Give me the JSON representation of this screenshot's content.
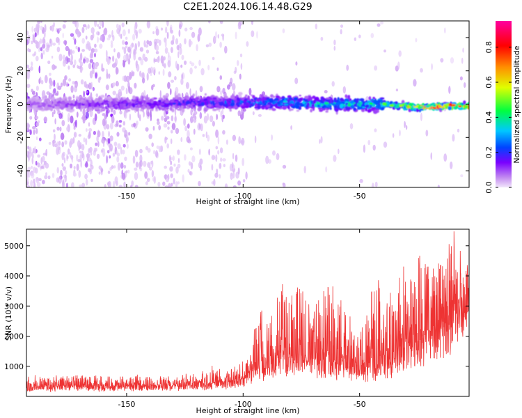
{
  "title": "C2E1.2024.106.14.48.G29",
  "chart_data": [
    {
      "type": "heatmap",
      "xlabel": "Height of straight line (km)",
      "ylabel": "Frequency (Hz)",
      "xlim": [
        -193,
        -3
      ],
      "ylim": [
        -50,
        50
      ],
      "x_ticks": [
        -150,
        -100,
        -50
      ],
      "y_ticks": [
        -40,
        -20,
        0,
        20,
        40
      ],
      "colorbar": {
        "label": "Normalized spectral amplitude",
        "range": [
          0,
          0.95
        ],
        "ticks": [
          0.0,
          0.2,
          0.4,
          0.6,
          0.8
        ],
        "colormap": [
          "#f2e6fb",
          "#c28af0",
          "#7a00ff",
          "#0044ff",
          "#00c8ff",
          "#00ff40",
          "#e0ff00",
          "#ff9000",
          "#ff0000",
          "#ff00a0"
        ]
      },
      "ridge": [
        {
          "x": -193,
          "freq": 0,
          "amp": 0.15
        },
        {
          "x": -150,
          "freq": 0,
          "amp": 0.25
        },
        {
          "x": -120,
          "freq": 1,
          "amp": 0.3
        },
        {
          "x": -100,
          "freq": 1,
          "amp": 0.35
        },
        {
          "x": -80,
          "freq": 1,
          "amp": 0.45
        },
        {
          "x": -60,
          "freq": 0,
          "amp": 0.5
        },
        {
          "x": -40,
          "freq": 0,
          "amp": 0.55
        },
        {
          "x": -25,
          "freq": -2,
          "amp": 0.85
        },
        {
          "x": -10,
          "freq": -1,
          "amp": 0.9
        },
        {
          "x": -3,
          "freq": -1,
          "amp": 0.9
        }
      ]
    },
    {
      "type": "line",
      "xlabel": "Height of straight line (km)",
      "ylabel": "SNR (10 * v/v)",
      "xlim": [
        -193,
        -3
      ],
      "ylim": [
        0,
        5550
      ],
      "x_ticks": [
        -150,
        -100,
        -50
      ],
      "y_ticks": [
        1000,
        2000,
        3000,
        4000,
        5000
      ],
      "color": "#ee3333",
      "series": [
        {
          "x": [
            -193,
            -180,
            -170,
            -160,
            -150,
            -140,
            -130,
            -120,
            -112,
            -108,
            -104,
            -100,
            -96,
            -92,
            -88,
            -84,
            -80,
            -76,
            -72,
            -68,
            -64,
            -60,
            -56,
            -52,
            -48,
            -44,
            -40,
            -36,
            -32,
            -28,
            -24,
            -20,
            -16,
            -12,
            -10,
            -8,
            -6,
            -4,
            -3
          ],
          "baseline": [
            250,
            280,
            300,
            290,
            300,
            320,
            330,
            350,
            380,
            400,
            450,
            550,
            700,
            850,
            1000,
            1100,
            1150,
            1100,
            1050,
            1000,
            950,
            900,
            900,
            850,
            850,
            900,
            950,
            1100,
            1300,
            1500,
            1700,
            1900,
            2100,
            2400,
            2600,
            2900,
            3100,
            3300,
            3450
          ],
          "peak": [
            650,
            700,
            700,
            650,
            650,
            650,
            650,
            750,
            1000,
            800,
            900,
            1200,
            1900,
            2900,
            2600,
            3600,
            3700,
            3600,
            3100,
            3500,
            3900,
            3500,
            2700,
            2600,
            2600,
            3700,
            4000,
            3300,
            4600,
            4100,
            4700,
            4900,
            4400,
            4200,
            5400,
            4500,
            4200,
            4000,
            4000
          ]
        }
      ]
    }
  ]
}
